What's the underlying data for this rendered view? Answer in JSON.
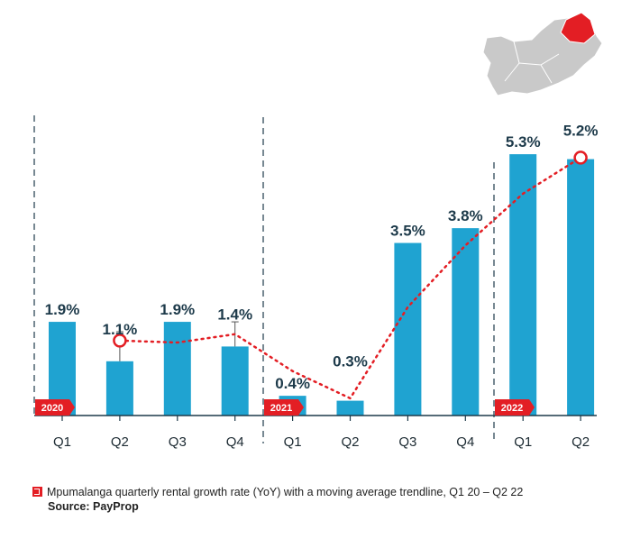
{
  "chart_data": {
    "type": "bar",
    "title": "",
    "xlabel": "",
    "ylabel": "",
    "ylim": [
      0,
      5.3
    ],
    "grid": false,
    "categories": [
      "Q1",
      "Q2",
      "Q3",
      "Q4",
      "Q1",
      "Q2",
      "Q3",
      "Q4",
      "Q1",
      "Q2"
    ],
    "years": [
      {
        "label": "2020",
        "start": 0
      },
      {
        "label": "2021",
        "start": 4
      },
      {
        "label": "2022",
        "start": 8
      }
    ],
    "values": [
      1.9,
      1.1,
      1.9,
      1.4,
      0.4,
      0.3,
      3.5,
      3.8,
      5.3,
      5.2
    ],
    "value_labels": [
      "1.9%",
      "1.1%",
      "1.9%",
      "1.4%",
      "0.4%",
      "0.3%",
      "3.5%",
      "3.8%",
      "5.3%",
      "5.2%"
    ],
    "error_bars": [
      {
        "index": 1,
        "upper": 1.7
      },
      {
        "index": 3,
        "upper": 1.9
      }
    ],
    "trendline": {
      "type": "moving average",
      "start_index": 1,
      "values": [
        1.52,
        1.48,
        1.65,
        0.9,
        0.35,
        2.2,
        3.45,
        4.5,
        5.23
      ]
    },
    "colors": {
      "bar": "#1fa3d1",
      "trend": "#e31e24",
      "year_tag": "#e31e24",
      "axis": "#1d3a4a"
    }
  },
  "map": {
    "highlight_region": "Mpumalanga",
    "base_color": "#c9c9c9",
    "highlight_color": "#e31e24"
  },
  "caption": {
    "icon": "brand-square-icon",
    "text": "Mpumalanga quarterly rental growth rate (YoY) with a moving average trendline, Q1 20 – Q2 22",
    "source": "Source: PayProp"
  }
}
